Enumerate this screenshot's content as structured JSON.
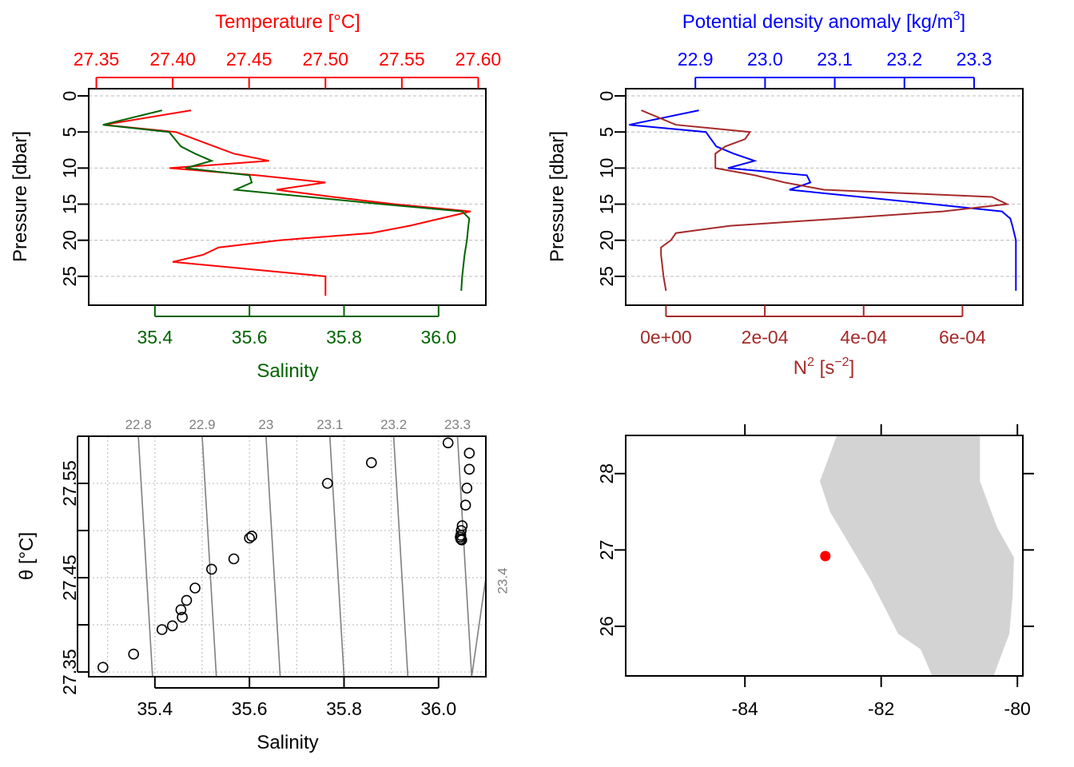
{
  "colors": {
    "temperature": "#ff0000",
    "salinity": "#006400",
    "density": "#0000ff",
    "n2": "#a52a2a",
    "grid": "#c8c8c8",
    "isopycnal": "#7f7f7f",
    "land": "#d3d3d3",
    "station": "#ff0000"
  },
  "chart_data": [
    {
      "type": "line",
      "panel": "temperature-salinity-profile",
      "xlabel_top": "Temperature [°C]",
      "xlabel_bottom": "Salinity",
      "ylabel": "Pressure [dbar]",
      "temperature_ticks": [
        "27.35",
        "27.40",
        "27.45",
        "27.50",
        "27.55",
        "27.60"
      ],
      "salinity_ticks": [
        "35.4",
        "35.6",
        "35.8",
        "36.0"
      ],
      "pressure_ticks": [
        "0",
        "5",
        "10",
        "15",
        "20",
        "25"
      ],
      "xlim_temperature": [
        27.345,
        27.605
      ],
      "xlim_salinity": [
        35.26,
        36.1
      ],
      "ylim_pressure": [
        29,
        -1
      ],
      "grid": "horizontal dashed",
      "series": [
        {
          "key": "temperature",
          "pressure": [
            2,
            4,
            5,
            8,
            9,
            10,
            11,
            12,
            13,
            14,
            15,
            16,
            17,
            18,
            19,
            20,
            21,
            22,
            23,
            25,
            27.7
          ],
          "values": [
            27.412,
            27.355,
            27.402,
            27.44,
            27.463,
            27.398,
            27.455,
            27.5,
            27.468,
            27.505,
            27.545,
            27.595,
            27.575,
            27.555,
            27.53,
            27.47,
            27.43,
            27.42,
            27.4,
            27.5,
            27.5
          ]
        },
        {
          "key": "salinity",
          "pressure": [
            2,
            4,
            5,
            7,
            8,
            9,
            10,
            11,
            12,
            13,
            15,
            16,
            17,
            18,
            20,
            22,
            25,
            27
          ],
          "values": [
            35.415,
            35.29,
            35.43,
            35.455,
            35.485,
            35.52,
            35.465,
            35.6,
            35.605,
            35.57,
            35.88,
            36.05,
            36.065,
            36.063,
            36.06,
            36.055,
            36.05,
            36.048
          ]
        }
      ]
    },
    {
      "type": "line",
      "panel": "density-n2-profile",
      "xlabel_top": "Potential density anomaly [kg/m",
      "xlabel_top_sup": "3",
      "xlabel_top_end": "]",
      "xlabel_bottom": "N",
      "xlabel_bottom_sup": "2",
      "xlabel_bottom_mid": " [s",
      "xlabel_bottom_sup2": "−2",
      "xlabel_bottom_end": "]",
      "ylabel": "Pressure [dbar]",
      "density_ticks": [
        "22.9",
        "23.0",
        "23.1",
        "23.2",
        "23.3"
      ],
      "n2_ticks": [
        "0e+00",
        "2e-04",
        "4e-04",
        "6e-04"
      ],
      "pressure_ticks": [
        "0",
        "5",
        "10",
        "15",
        "20",
        "25"
      ],
      "xlim_density": [
        22.8,
        23.37
      ],
      "xlim_n2": [
        -8.15e-05,
        0.0007222
      ],
      "ylim_pressure": [
        29,
        -1
      ],
      "grid": "horizontal dashed",
      "series": [
        {
          "key": "density",
          "pressure": [
            2,
            4,
            5,
            7,
            8,
            9,
            10,
            11,
            12,
            13,
            15,
            16,
            17,
            18,
            20,
            22,
            25,
            27
          ],
          "values": [
            22.905,
            22.805,
            22.915,
            22.93,
            22.955,
            22.985,
            22.947,
            23.06,
            23.065,
            23.035,
            23.24,
            23.34,
            23.352,
            23.355,
            23.36,
            23.36,
            23.36,
            23.36
          ]
        },
        {
          "key": "n2",
          "pressure": [
            2,
            4,
            5,
            6,
            7,
            8,
            9,
            10,
            11,
            12,
            13,
            14,
            15,
            16,
            17,
            18,
            19,
            20,
            21,
            22,
            25,
            27
          ],
          "values": [
            -5e-05,
            2e-05,
            0.00017,
            0.00016,
            0.00012,
            0.0001,
            0.0001,
            0.0001,
            0.00018,
            0.00024,
            0.00032,
            0.00066,
            0.00069,
            0.00056,
            0.00035,
            0.00013,
            2e-05,
            1e-05,
            -1e-05,
            -1e-05,
            -5e-06,
            0.0
          ]
        }
      ]
    },
    {
      "type": "scatter",
      "panel": "ts-diagram",
      "xlabel": "Salinity",
      "ylabel": "θ [°C]",
      "x_ticks": [
        "35.4",
        "35.6",
        "35.8",
        "36.0"
      ],
      "y_ticks": [
        "27.35",
        "27.45",
        "27.55"
      ],
      "xlim": [
        35.26,
        36.1
      ],
      "ylim": [
        27.345,
        27.6
      ],
      "grid": "dotted",
      "isopycnal_labels": [
        "22.8",
        "22.9",
        "23",
        "23.1",
        "23.2",
        "23.3"
      ],
      "isopycnal_side_label": "23.4",
      "isopycnal_top_salinity": [
        35.365,
        35.5,
        35.635,
        35.77,
        35.905,
        36.04
      ],
      "isopycnal_bottom_salinity": [
        35.26,
        35.395,
        35.53,
        35.665,
        35.8,
        35.935,
        36.07
      ],
      "isopycnal_side_top": [
        36.1,
        27.45
      ],
      "points": [
        [
          35.29,
          27.355
        ],
        [
          35.355,
          27.369
        ],
        [
          35.415,
          27.395
        ],
        [
          35.437,
          27.399
        ],
        [
          35.458,
          27.408
        ],
        [
          35.455,
          27.416
        ],
        [
          35.467,
          27.426
        ],
        [
          35.485,
          27.439
        ],
        [
          35.52,
          27.459
        ],
        [
          35.567,
          27.47
        ],
        [
          35.6,
          27.492
        ],
        [
          35.605,
          27.494
        ],
        [
          35.765,
          27.55
        ],
        [
          35.858,
          27.572
        ],
        [
          36.02,
          27.593
        ],
        [
          36.065,
          27.582
        ],
        [
          36.065,
          27.565
        ],
        [
          36.06,
          27.545
        ],
        [
          36.057,
          27.527
        ],
        [
          36.05,
          27.505
        ],
        [
          36.048,
          27.5
        ],
        [
          36.047,
          27.495
        ],
        [
          36.046,
          27.493
        ],
        [
          36.047,
          27.491
        ],
        [
          36.049,
          27.49
        ]
      ]
    },
    {
      "type": "map",
      "panel": "station-map",
      "x_ticks": [
        "-84",
        "-82",
        "-80"
      ],
      "y_ticks": [
        "26",
        "27",
        "28"
      ],
      "xlim": [
        -85.75,
        -79.92
      ],
      "ylim": [
        25.35,
        28.5
      ],
      "land_polygon": [
        [
          -82.65,
          28.5
        ],
        [
          -80.55,
          28.5
        ],
        [
          -80.55,
          27.9
        ],
        [
          -80.3,
          27.3
        ],
        [
          -80.05,
          26.9
        ],
        [
          -80.07,
          26.4
        ],
        [
          -80.12,
          25.9
        ],
        [
          -80.35,
          25.35
        ],
        [
          -81.25,
          25.35
        ],
        [
          -81.42,
          25.7
        ],
        [
          -81.75,
          25.9
        ],
        [
          -82.15,
          26.6
        ],
        [
          -82.55,
          27.2
        ],
        [
          -82.75,
          27.5
        ],
        [
          -82.9,
          27.9
        ]
      ],
      "station": [
        -82.82,
        26.92
      ]
    }
  ]
}
